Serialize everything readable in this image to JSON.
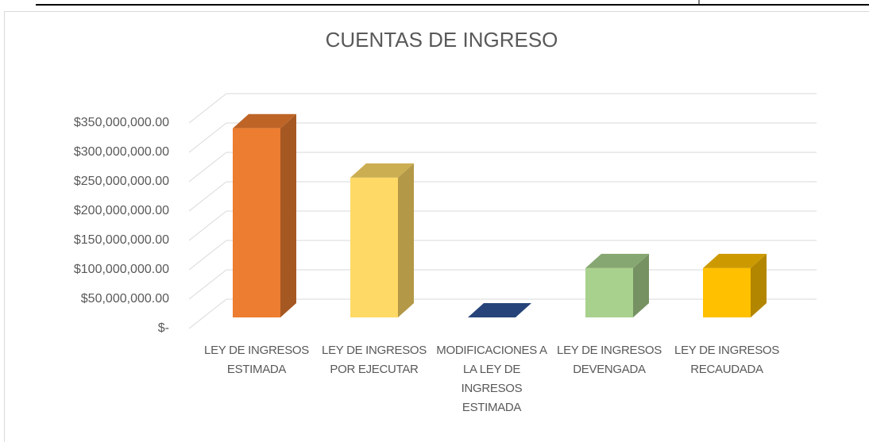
{
  "chart_data": {
    "type": "bar3d",
    "title": "CUENTAS DE INGRESO",
    "categories": [
      "LEY DE INGRESOS ESTIMADA",
      "LEY DE INGRESOS POR EJECUTAR",
      "MODIFICACIONES A LA LEY DE INGRESOS ESTIMADA",
      "LEY DE INGRESOS DEVENGADA",
      "LEY DE INGRESOS RECAUDADA"
    ],
    "values": [
      322000000,
      238000000,
      0,
      84000000,
      84000000
    ],
    "colors": [
      "#ed7d31",
      "#ffd966",
      "#2f5597",
      "#a9d18e",
      "#ffc000"
    ],
    "ylim": [
      0,
      350000000
    ],
    "yticks": [
      {
        "value": 0,
        "label": "$-"
      },
      {
        "value": 50000000,
        "label": "$50,000,000.00"
      },
      {
        "value": 100000000,
        "label": "$100,000,000.00"
      },
      {
        "value": 150000000,
        "label": "$150,000,000.00"
      },
      {
        "value": 200000000,
        "label": "$200,000,000.00"
      },
      {
        "value": 250000000,
        "label": "$250,000,000.00"
      },
      {
        "value": 300000000,
        "label": "$300,000,000.00"
      },
      {
        "value": 350000000,
        "label": "$350,000,000.00"
      }
    ],
    "grid": true
  }
}
